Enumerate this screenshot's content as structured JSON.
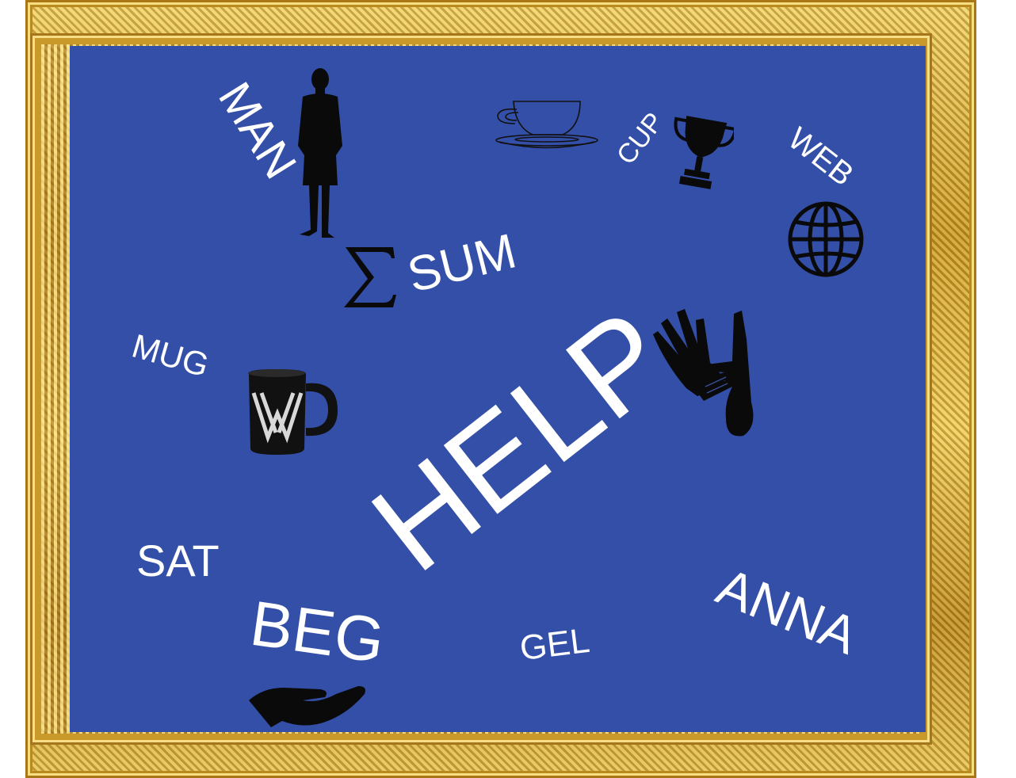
{
  "board": {
    "background": "#344fa8",
    "frame_color": "#d4a632"
  },
  "words": {
    "man": "MAN",
    "sum": "SUM",
    "cup": "CUP",
    "web": "WEB",
    "mug": "MUG",
    "help": "HELP",
    "sat": "SAT",
    "beg": "BEG",
    "gel": "GEL",
    "anna": "ANNA"
  },
  "icons": [
    "man-silhouette-icon",
    "sigma-icon",
    "teacup-icon",
    "trophy-icon",
    "globe-icon",
    "mug-icon",
    "helping-hands-icon",
    "open-hand-icon"
  ]
}
